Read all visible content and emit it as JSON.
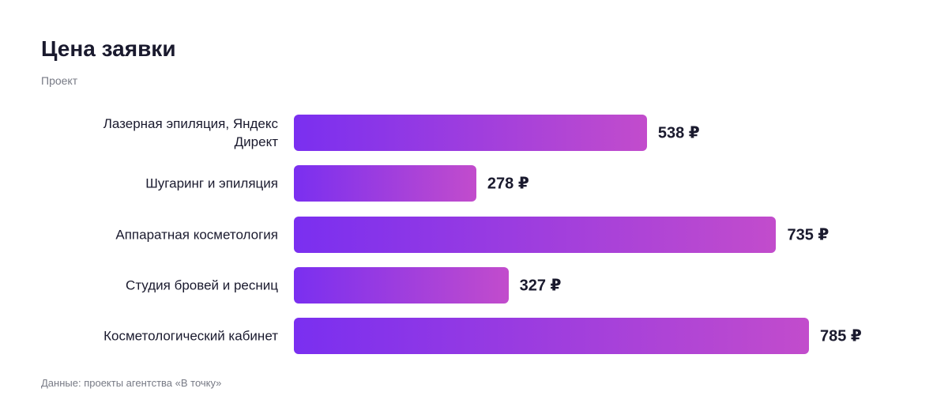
{
  "chart_data": {
    "type": "bar",
    "orientation": "horizontal",
    "title": "Цена заявки",
    "subtitle": "Проект",
    "categories": [
      "Лазерная эпиляция, Яндекс Директ",
      "Шугаринг и эпиляция",
      "Аппаратная косметология",
      "Студия бровей и ресниц",
      "Косметологический кабинет"
    ],
    "values": [
      538,
      278,
      735,
      327,
      785
    ],
    "value_labels": [
      "538 ₽",
      "278 ₽",
      "735 ₽",
      "327 ₽",
      "785 ₽"
    ],
    "colors": [
      "#7a2ff0",
      "#c24ccc"
    ],
    "source": "Данные: проекты агентства «В точку»"
  }
}
